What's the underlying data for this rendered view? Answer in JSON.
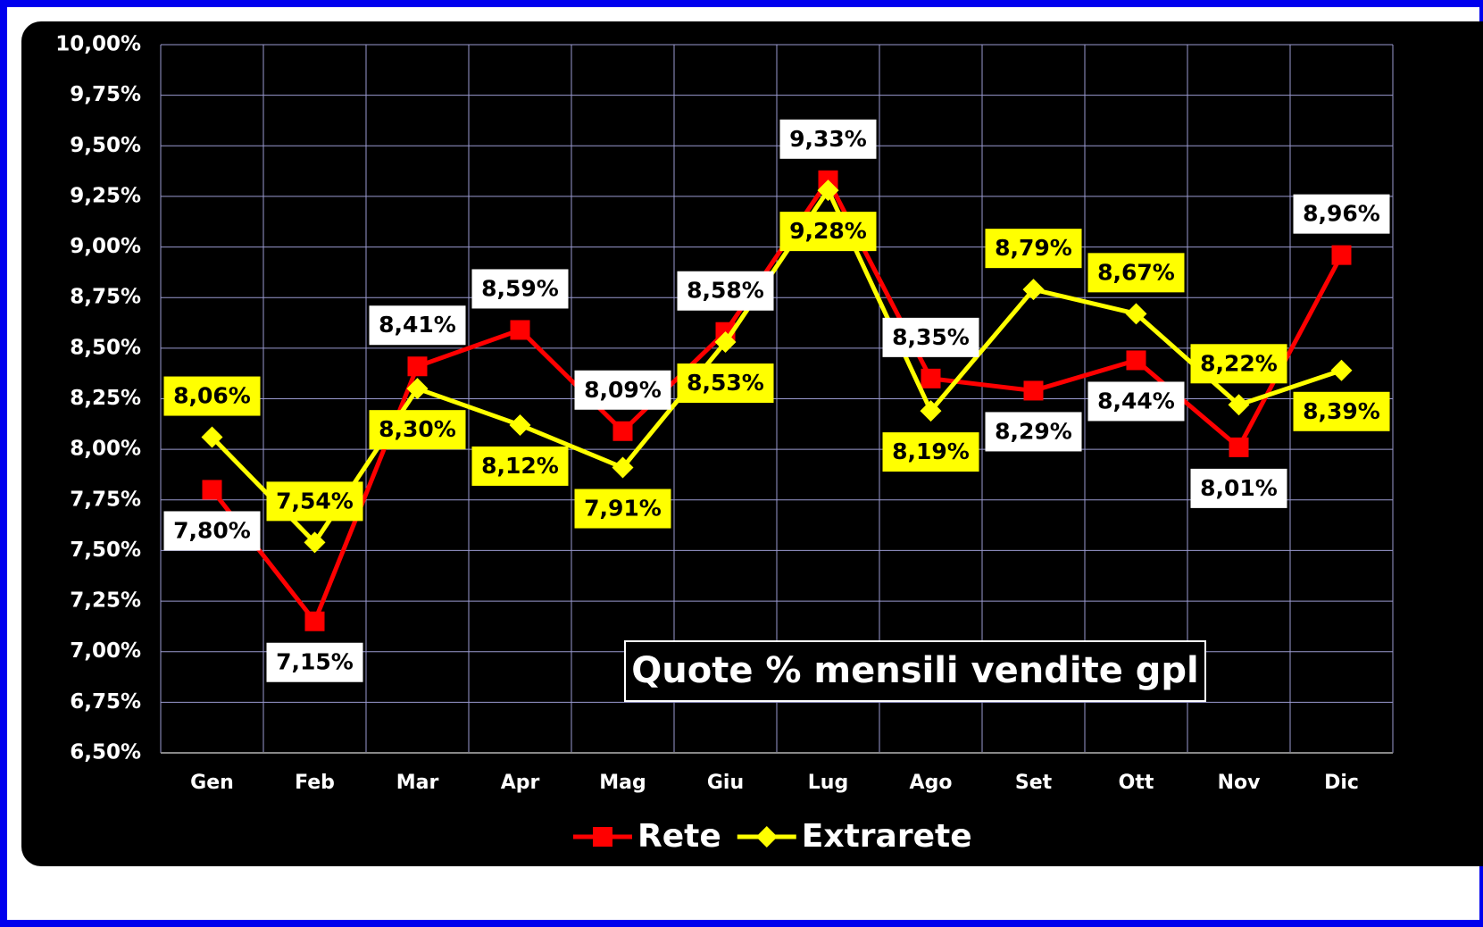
{
  "chart_data": {
    "type": "line",
    "title": "Quote % mensili vendite gpl",
    "categories": [
      "Gen",
      "Feb",
      "Mar",
      "Apr",
      "Mag",
      "Giu",
      "Lug",
      "Ago",
      "Set",
      "Ott",
      "Nov",
      "Dic"
    ],
    "series": [
      {
        "name": "Rete",
        "color": "#ff0000",
        "marker": "square",
        "values": [
          7.8,
          7.15,
          8.41,
          8.59,
          8.09,
          8.58,
          9.33,
          8.35,
          8.29,
          8.44,
          8.01,
          8.96
        ],
        "value_labels": [
          "7,80%",
          "7,15%",
          "8,41%",
          "8,59%",
          "8,09%",
          "8,58%",
          "9,33%",
          "8,35%",
          "8,29%",
          "8,44%",
          "8,01%",
          "8,96%"
        ]
      },
      {
        "name": "Extrarete",
        "color": "#ffff00",
        "marker": "diamond",
        "values": [
          8.06,
          7.54,
          8.3,
          8.12,
          7.91,
          8.53,
          9.28,
          8.19,
          8.79,
          8.67,
          8.22,
          8.39
        ],
        "value_labels": [
          "8,06%",
          "7,54%",
          "8,30%",
          "8,12%",
          "7,91%",
          "8,53%",
          "9,28%",
          "8,19%",
          "8,79%",
          "8,67%",
          "8,22%",
          "8,39%"
        ]
      }
    ],
    "ylim": [
      6.5,
      10
    ],
    "yticks": [
      {
        "value": 6.5,
        "label": "6,50%"
      },
      {
        "value": 6.75,
        "label": "6,75%"
      },
      {
        "value": 7,
        "label": "7,00%"
      },
      {
        "value": 7.25,
        "label": "7,25%"
      },
      {
        "value": 7.5,
        "label": "7,50%"
      },
      {
        "value": 7.75,
        "label": "7,75%"
      },
      {
        "value": 8,
        "label": "8,00%"
      },
      {
        "value": 8.25,
        "label": "8,25%"
      },
      {
        "value": 8.5,
        "label": "8,50%"
      },
      {
        "value": 8.75,
        "label": "8,75%"
      },
      {
        "value": 9,
        "label": "9,00%"
      },
      {
        "value": 9.25,
        "label": "9,25%"
      },
      {
        "value": 9.5,
        "label": "9,50%"
      },
      {
        "value": 9.75,
        "label": "9,75%"
      },
      {
        "value": 10,
        "label": "10,00%"
      }
    ],
    "grid": true,
    "legend": "bottom"
  }
}
